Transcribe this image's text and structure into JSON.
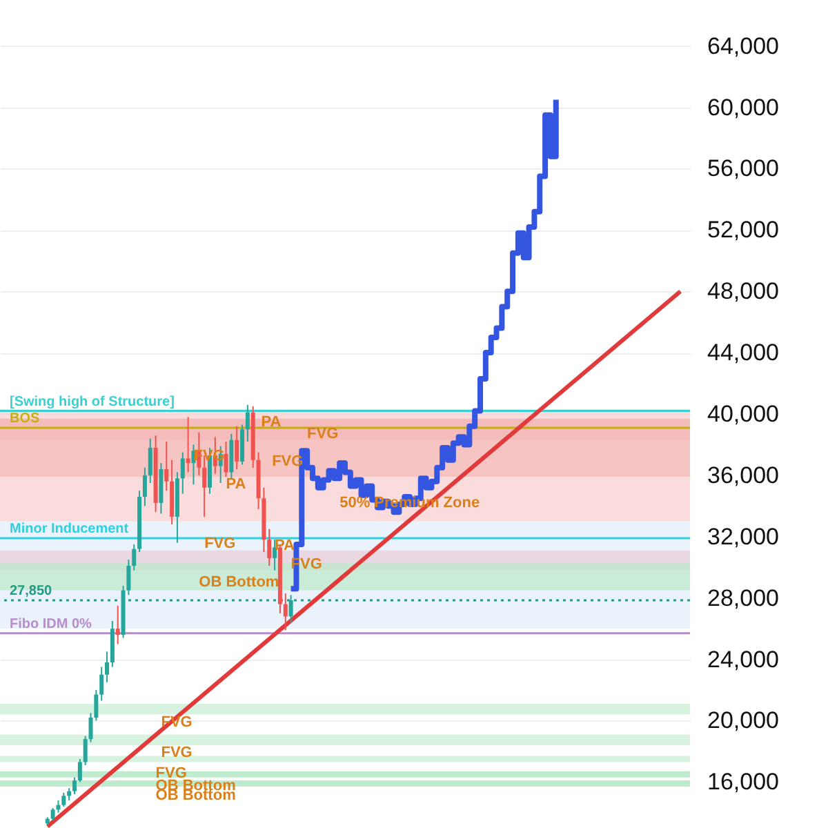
{
  "chart_data": {
    "type": "candlestick",
    "tick_labels": "y",
    "grid": "y",
    "ylim": [
      13000,
      67000
    ],
    "yticks": [
      {
        "value": 16000,
        "label": "16,000"
      },
      {
        "value": 20000,
        "label": "20,000"
      },
      {
        "value": 24000,
        "label": "24,000"
      },
      {
        "value": 28000,
        "label": "28,000"
      },
      {
        "value": 32000,
        "label": "32,000"
      },
      {
        "value": 36000,
        "label": "36,000"
      },
      {
        "value": 40000,
        "label": "40,000"
      },
      {
        "value": 44000,
        "label": "44,000"
      },
      {
        "value": 48000,
        "label": "48,000"
      },
      {
        "value": 52000,
        "label": "52,000"
      },
      {
        "value": 56000,
        "label": "56,000"
      },
      {
        "value": 60000,
        "label": "60,000"
      },
      {
        "value": 64000,
        "label": "64,000"
      }
    ],
    "categories": [
      null,
      null,
      null,
      null,
      null,
      null,
      null,
      null,
      null,
      null,
      null,
      null,
      null,
      null,
      null,
      null,
      null,
      null,
      null,
      null,
      null,
      null,
      null,
      null,
      null,
      null,
      null,
      null,
      null,
      null,
      null,
      null,
      null,
      null,
      null,
      null,
      null,
      null,
      null,
      null,
      null,
      null,
      null,
      null,
      null,
      null,
      null,
      null,
      null,
      null,
      null,
      null,
      null,
      null,
      null,
      null,
      null,
      null,
      null,
      null,
      null,
      null,
      null,
      null,
      null,
      null,
      null,
      null,
      null,
      null,
      null,
      null,
      null,
      null,
      null,
      null,
      null,
      null,
      null,
      null,
      null,
      null,
      null,
      null,
      null,
      null,
      null,
      null,
      null,
      null,
      null,
      null,
      null,
      null,
      null,
      null,
      null,
      null,
      null,
      null,
      null,
      null,
      null,
      null,
      null,
      null,
      null,
      null,
      null,
      null,
      null,
      null,
      null,
      null,
      null,
      null,
      null,
      null
    ],
    "ohlc": [
      [
        13300,
        13700,
        13200,
        13600
      ],
      [
        13600,
        14300,
        13500,
        14200
      ],
      [
        14200,
        14800,
        14000,
        14500
      ],
      [
        14500,
        15300,
        14400,
        15100
      ],
      [
        15100,
        15600,
        14800,
        15400
      ],
      [
        15400,
        16300,
        15200,
        16100
      ],
      [
        16100,
        17500,
        16000,
        17300
      ],
      [
        17300,
        19000,
        17100,
        18800
      ],
      [
        18800,
        20500,
        18600,
        20200
      ],
      [
        20200,
        22000,
        20000,
        21700
      ],
      [
        21700,
        23500,
        21300,
        23000
      ],
      [
        23000,
        24500,
        22500,
        23800
      ],
      [
        23800,
        26500,
        23500,
        26000
      ],
      [
        26000,
        27500,
        25000,
        25600
      ],
      [
        25600,
        28800,
        25400,
        28500
      ],
      [
        28500,
        30500,
        28200,
        30100
      ],
      [
        30100,
        31500,
        29800,
        31200
      ],
      [
        31200,
        35000,
        31000,
        34600
      ],
      [
        34600,
        36500,
        34000,
        36000
      ],
      [
        36000,
        38400,
        35500,
        37800
      ],
      [
        37800,
        38600,
        33600,
        34200
      ],
      [
        34200,
        36800,
        33500,
        36400
      ],
      [
        36400,
        38200,
        35000,
        35600
      ],
      [
        35600,
        37000,
        32800,
        33300
      ],
      [
        33300,
        36200,
        31600,
        35800
      ],
      [
        35800,
        37500,
        34800,
        37100
      ],
      [
        37100,
        39800,
        36200,
        36800
      ],
      [
        36800,
        38000,
        35400,
        37600
      ],
      [
        37600,
        38800,
        36000,
        36500
      ],
      [
        36500,
        37300,
        33300,
        35200
      ],
      [
        35200,
        37800,
        34800,
        37300
      ],
      [
        37300,
        38500,
        36100,
        36600
      ],
      [
        36600,
        37900,
        35500,
        37400
      ],
      [
        37400,
        38200,
        35900,
        36200
      ],
      [
        36200,
        38700,
        35800,
        38300
      ],
      [
        38300,
        39200,
        36400,
        36900
      ],
      [
        36900,
        39300,
        36700,
        39000
      ],
      [
        39000,
        40600,
        38200,
        40100
      ],
      [
        40100,
        40500,
        36500,
        37000
      ],
      [
        37000,
        37500,
        33800,
        34500
      ],
      [
        34500,
        35200,
        31000,
        31800
      ],
      [
        31800,
        32500,
        30100,
        30600
      ],
      [
        30600,
        31800,
        29800,
        31300
      ],
      [
        31300,
        31500,
        27000,
        27600
      ],
      [
        27600,
        28300,
        25900,
        26800
      ],
      [
        26800,
        28200,
        26400,
        27850
      ],
      null,
      null,
      null,
      null,
      null,
      null,
      null,
      null,
      null,
      null,
      null,
      null,
      null,
      null,
      null,
      null,
      null,
      null,
      null,
      null,
      null,
      null,
      null,
      null,
      null,
      null,
      null,
      null,
      null,
      null,
      null,
      null,
      null,
      null,
      null,
      null,
      null,
      null,
      null,
      null,
      null,
      null,
      null,
      null,
      null,
      null,
      null,
      null,
      null,
      null,
      null,
      null,
      null,
      null,
      null,
      null,
      null,
      null,
      null,
      null,
      null,
      null,
      null,
      null,
      null,
      null,
      null,
      null,
      null,
      null,
      null,
      null
    ],
    "colors": [
      "#26a69a",
      "#26a69a",
      "#26a69a",
      "#26a69a",
      "#26a69a",
      "#26a69a",
      "#26a69a",
      "#26a69a",
      "#26a69a",
      "#26a69a",
      "#26a69a",
      "#26a69a",
      "#26a69a",
      "#ef5350",
      "#26a69a",
      "#26a69a",
      "#26a69a",
      "#26a69a",
      "#26a69a",
      "#26a69a",
      "#ef5350",
      "#26a69a",
      "#ef5350",
      "#ef5350",
      "#26a69a",
      "#26a69a",
      "#ef5350",
      "#26a69a",
      "#ef5350",
      "#ef5350",
      "#26a69a",
      "#ef5350",
      "#26a69a",
      "#ef5350",
      "#26a69a",
      "#ef5350",
      "#26a69a",
      "#26a69a",
      "#ef5350",
      "#ef5350",
      "#ef5350",
      "#ef5350",
      "#26a69a",
      "#ef5350",
      "#ef5350",
      "#26a69a",
      null,
      null,
      null,
      null,
      null,
      null,
      null,
      null,
      null,
      null,
      null,
      null,
      null,
      null,
      null,
      null,
      null,
      null,
      null,
      null,
      null,
      null,
      null,
      null,
      null,
      null,
      null,
      null,
      null,
      null,
      null,
      null,
      null,
      null,
      null,
      null,
      null,
      null,
      null,
      null,
      null,
      null,
      null,
      null,
      null,
      null,
      null,
      null,
      null,
      null,
      null,
      null,
      null,
      null,
      null,
      null,
      null,
      null,
      null,
      null,
      null,
      null,
      null,
      null,
      null,
      null,
      null,
      null,
      null,
      null,
      null,
      null
    ],
    "series": [
      {
        "type": "step",
        "color": "#3355e0",
        "values": [
          null,
          null,
          null,
          null,
          null,
          null,
          null,
          null,
          null,
          null,
          null,
          null,
          null,
          null,
          null,
          null,
          null,
          null,
          null,
          null,
          null,
          null,
          null,
          null,
          null,
          null,
          null,
          null,
          null,
          null,
          null,
          null,
          null,
          null,
          null,
          null,
          null,
          null,
          null,
          null,
          null,
          null,
          null,
          null,
          null,
          28600,
          31500,
          37600,
          36500,
          35800,
          35200,
          35700,
          36300,
          35800,
          36800,
          36200,
          35300,
          35700,
          34700,
          35300,
          34400,
          33900,
          34300,
          34000,
          33600,
          34100,
          34600,
          34100,
          34500,
          35800,
          35200,
          35600,
          36500,
          37800,
          37000,
          38100,
          38500,
          38000,
          39200,
          40200,
          42300,
          44000,
          45000,
          45600,
          47000,
          48000,
          50500,
          51800,
          50200,
          52200,
          53200,
          55500,
          59500,
          56800,
          60500,
          null,
          null,
          null,
          null,
          null,
          null,
          null,
          null,
          null,
          null,
          null,
          null,
          null,
          null,
          null,
          null,
          null,
          null,
          null,
          null,
          null,
          null,
          null
        ]
      },
      {
        "type": "line",
        "color": "#e03a3a",
        "values": [
          13100,
          null,
          null,
          null,
          null,
          null,
          null,
          null,
          null,
          null,
          null,
          null,
          null,
          null,
          null,
          null,
          null,
          null,
          null,
          null,
          null,
          null,
          null,
          null,
          null,
          null,
          null,
          null,
          null,
          null,
          null,
          null,
          null,
          null,
          null,
          null,
          null,
          null,
          null,
          null,
          null,
          null,
          null,
          null,
          null,
          null,
          null,
          null,
          null,
          null,
          null,
          null,
          null,
          null,
          null,
          null,
          null,
          null,
          null,
          null,
          null,
          null,
          null,
          null,
          null,
          null,
          null,
          null,
          null,
          null,
          null,
          null,
          null,
          null,
          null,
          null,
          null,
          null,
          null,
          null,
          null,
          null,
          null,
          null,
          null,
          null,
          null,
          null,
          null,
          null,
          null,
          null,
          null,
          null,
          null,
          null,
          null,
          null,
          null,
          null,
          null,
          null,
          null,
          null,
          null,
          null,
          null,
          null,
          null,
          null,
          null,
          null,
          null,
          null,
          null,
          null,
          null,
          48000
        ]
      }
    ],
    "bands": [
      {
        "axis": "y",
        "from": 26000,
        "to": 33000,
        "color": "#e3eefb"
      },
      {
        "axis": "y",
        "from": 33000,
        "to": 40300,
        "color": "#f9d0d0"
      },
      {
        "axis": "y",
        "from": 38300,
        "to": 39700,
        "color": "#f3b0b0"
      },
      {
        "axis": "y",
        "from": 35900,
        "to": 38600,
        "color": "#f5bcbc"
      },
      {
        "axis": "y",
        "from": 29800,
        "to": 31100,
        "color": "#e8cfd8"
      },
      {
        "axis": "y",
        "from": 28500,
        "to": 30300,
        "color": "#bfe8cc"
      },
      {
        "axis": "y",
        "from": 20400,
        "to": 21100,
        "color": "#c9efd5"
      },
      {
        "axis": "y",
        "from": 18400,
        "to": 19100,
        "color": "#c9efd5"
      },
      {
        "axis": "y",
        "from": 17300,
        "to": 17700,
        "color": "#c9efd5"
      },
      {
        "axis": "y",
        "from": 16300,
        "to": 16700,
        "color": "#a9e6bd"
      },
      {
        "axis": "y",
        "from": 15700,
        "to": 16100,
        "color": "#a9e6bd"
      }
    ],
    "ref_lines": [
      {
        "axis": "y",
        "value": 40200,
        "label": "[Swing high of Structure]",
        "color": "#3ccfcf",
        "line_style": "solid"
      },
      {
        "axis": "y",
        "value": 39100,
        "label": "BOS",
        "color": "#c4ae10",
        "line_style": "solid"
      },
      {
        "axis": "y",
        "value": 31900,
        "label": "Minor Inducement",
        "color": "#2fd0e0",
        "line_style": "solid"
      },
      {
        "axis": "y",
        "value": 27850,
        "label": "27,850",
        "color": "#1e9e80",
        "line_style": "dotted"
      },
      {
        "axis": "y",
        "value": 25700,
        "label": "Fibo IDM 0%",
        "color": "#b98ccb",
        "line_style": "solid"
      }
    ],
    "annotations": [
      {
        "text": "PA",
        "y": 39450
      },
      {
        "text": "FVG",
        "y": 38700
      },
      "FVG",
      {
        "text": "FVG",
        "y": 37250
      },
      "PA",
      {
        "text": "50% Premium Zone",
        "y": 34200
      },
      {
        "text": "FVG",
        "y": 31550
      },
      {
        "text": "PA",
        "y": 31400
      },
      {
        "text": "FVG",
        "y": 30200
      },
      "OB Bottom",
      {
        "text": "FVG",
        "y": 19900
      },
      {
        "text": "FVG",
        "y": 17900
      },
      {
        "text": "FVG",
        "y": 16550
      },
      {
        "text": "OB Bottom",
        "y": 15750
      },
      "OB Bottom"
    ]
  }
}
